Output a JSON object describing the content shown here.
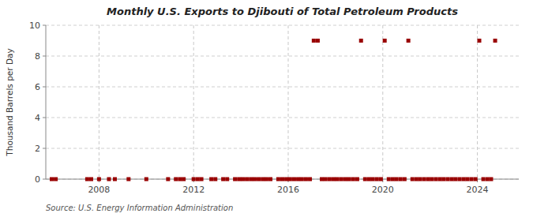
{
  "chart_data": {
    "type": "scatter",
    "title": "Monthly U.S. Exports to Djibouti of Total Petroleum Products",
    "y_label": "Thousand Barrels per Day",
    "annotations": [
      "Source: U.S. Energy Information Administration"
    ],
    "color": "#990000",
    "marker": "square",
    "grid": true,
    "xlim": [
      2005.75,
      2025.75
    ],
    "ylim": [
      0,
      10
    ],
    "xticks": [
      2008,
      2012,
      2016,
      2020,
      2024
    ],
    "yticks": [
      0,
      2,
      4,
      6,
      8,
      10
    ],
    "x": [
      2006.0,
      2006.17,
      2007.5,
      2007.67,
      2008.0,
      2008.42,
      2008.67,
      2009.25,
      2010.0,
      2010.92,
      2011.25,
      2011.42,
      2011.58,
      2012.0,
      2012.17,
      2012.33,
      2012.75,
      2012.92,
      2013.25,
      2013.42,
      2013.75,
      2013.92,
      2014.08,
      2014.25,
      2014.42,
      2014.58,
      2014.75,
      2014.92,
      2015.08,
      2015.25,
      2015.58,
      2015.75,
      2015.92,
      2016.08,
      2016.25,
      2016.42,
      2016.58,
      2016.75,
      2016.92,
      2017.08,
      2017.25,
      2017.42,
      2017.58,
      2017.75,
      2017.92,
      2018.08,
      2018.25,
      2018.42,
      2018.58,
      2018.75,
      2018.92,
      2019.08,
      2019.25,
      2019.42,
      2019.58,
      2019.75,
      2019.92,
      2020.08,
      2020.25,
      2020.42,
      2020.58,
      2020.75,
      2020.92,
      2021.08,
      2021.25,
      2021.42,
      2021.58,
      2021.75,
      2021.92,
      2022.08,
      2022.25,
      2022.42,
      2022.58,
      2022.75,
      2022.92,
      2023.08,
      2023.25,
      2023.42,
      2023.58,
      2023.75,
      2023.92,
      2024.08,
      2024.25,
      2024.42,
      2024.58,
      2024.75
    ],
    "values": [
      0,
      0,
      0,
      0,
      0,
      0,
      0,
      0,
      0,
      0,
      0,
      0,
      0,
      0,
      0,
      0,
      0,
      0,
      0,
      0,
      0,
      0,
      0,
      0,
      0,
      0,
      0,
      0,
      0,
      0,
      0,
      0,
      0,
      0,
      0,
      0,
      0,
      0,
      0,
      9,
      9,
      0,
      0,
      0,
      0,
      0,
      0,
      0,
      0,
      0,
      0,
      9,
      0,
      0,
      0,
      0,
      0,
      9,
      0,
      0,
      0,
      0,
      0,
      9,
      0,
      0,
      0,
      0,
      0,
      0,
      0,
      0,
      0,
      0,
      0,
      0,
      0,
      0,
      0,
      0,
      0,
      9,
      0,
      0,
      0,
      9
    ]
  }
}
